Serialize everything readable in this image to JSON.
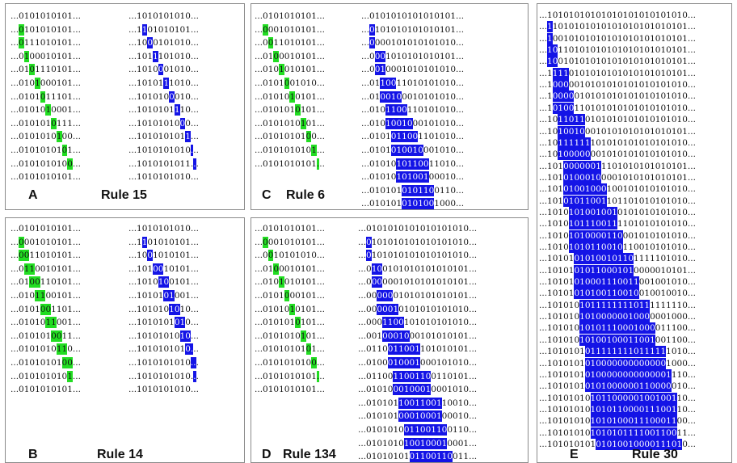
{
  "panels": [
    {
      "id": "A",
      "label_letter": "A",
      "label_rule": "Rule 15",
      "left_rows": [
        {
          "t": "...0101010101..."
        },
        {
          "t": "...0101010101...",
          "g": [
            3
          ]
        },
        {
          "t": "...0111010101...",
          "g": [
            3
          ]
        },
        {
          "t": "...0100010101...",
          "g": [
            4
          ]
        },
        {
          "t": "...0101110101...",
          "g": [
            5
          ]
        },
        {
          "t": "...0101000101...",
          "g": [
            6
          ]
        },
        {
          "t": "...0101011101...",
          "g": [
            7
          ]
        },
        {
          "t": "...0101010001...",
          "g": [
            8
          ]
        },
        {
          "t": "...0101010111...",
          "g": [
            9
          ]
        },
        {
          "t": "...0101010100...",
          "g": [
            10
          ]
        },
        {
          "t": "...0101010101...",
          "g": [
            11
          ]
        },
        {
          "t": "...0101010100...",
          "g": [
            12
          ]
        },
        {
          "t": "...0101010101..."
        }
      ],
      "right_rows": [
        {
          "t": "...1010101010..."
        },
        {
          "t": "...1101010101...",
          "b": [
            4
          ]
        },
        {
          "t": "...1000101010...",
          "b": [
            5
          ]
        },
        {
          "t": "...1011101010...",
          "b": [
            6
          ]
        },
        {
          "t": "...1010001010...",
          "b": [
            7
          ]
        },
        {
          "t": "...1010111010...",
          "b": [
            8
          ]
        },
        {
          "t": "...1010100010...",
          "b": [
            9
          ]
        },
        {
          "t": "...1010101110...",
          "b": [
            10
          ]
        },
        {
          "t": "...1010101000...",
          "b": [
            11
          ]
        },
        {
          "t": "...1010101011...",
          "b": [
            12
          ]
        },
        {
          "t": "...1010101010...",
          "b": [
            13
          ]
        },
        {
          "t": "...1010101011...",
          "b": [
            14
          ]
        },
        {
          "t": "...1010101010..."
        }
      ]
    },
    {
      "id": "B",
      "label_letter": "B",
      "label_rule": "Rule 14",
      "left_rows": [
        {
          "t": "...0101010101..."
        },
        {
          "t": "...0001010101...",
          "g": [
            3
          ]
        },
        {
          "t": "...0011010101...",
          "g": [
            3,
            4
          ]
        },
        {
          "t": "...0110010101...",
          "g": [
            4,
            5
          ]
        },
        {
          "t": "...0100110101...",
          "g": [
            5,
            6
          ]
        },
        {
          "t": "...0101100101...",
          "g": [
            6,
            7
          ]
        },
        {
          "t": "...0101001101...",
          "g": [
            7,
            8
          ]
        },
        {
          "t": "...0101011001...",
          "g": [
            8,
            9
          ]
        },
        {
          "t": "...0101010011...",
          "g": [
            9,
            10
          ]
        },
        {
          "t": "...0101010110...",
          "g": [
            10,
            11
          ]
        },
        {
          "t": "...0101010100...",
          "g": [
            11,
            12
          ]
        },
        {
          "t": "...0101010101...",
          "g": [
            12
          ]
        },
        {
          "t": "...0101010101..."
        }
      ],
      "right_rows": [
        {
          "t": "...1010101010..."
        },
        {
          "t": "...1101010101...",
          "b": [
            4
          ]
        },
        {
          "t": "...1001010101...",
          "b": [
            5
          ]
        },
        {
          "t": "...1010010101...",
          "b": [
            6,
            7
          ]
        },
        {
          "t": "...1010100101...",
          "b": [
            7,
            8
          ]
        },
        {
          "t": "...1010101001...",
          "b": [
            8,
            9
          ]
        },
        {
          "t": "...1010101010...",
          "b": [
            9,
            10
          ]
        },
        {
          "t": "...1010101010...",
          "b": [
            10,
            11
          ]
        },
        {
          "t": "...1010101010...",
          "b": [
            11,
            12
          ]
        },
        {
          "t": "...1010101010...",
          "b": [
            12,
            13
          ]
        },
        {
          "t": "...1010101010...",
          "b": [
            13,
            14
          ]
        },
        {
          "t": "...1010101010...",
          "b": [
            14
          ]
        },
        {
          "t": "...1010101010..."
        }
      ]
    }
  ],
  "panel_c": {
    "label_letter": "C",
    "label_rule": "Rule 6",
    "left_rows": [
      "...0101010101...",
      "...0001010101...",
      "...0011010101...",
      "...0100010101...",
      "...0101010101...",
      "...0101001010...",
      "...0101010101...",
      "...0101010101...",
      "...0101010101...",
      "...0101010100...",
      "...0101010101...",
      "...0101010101..."
    ],
    "right_rows": [
      "...0101010101010101...",
      "...0101010101010101...",
      "...0000101010101010...",
      "...0001010101010101...",
      "...0010001010101010...",
      "...0110011010101010...",
      "...0100100010101010...",
      "...0101100110101010...",
      "...0101001000101010...",
      "...0101011001101010...",
      "...0101010010001010...",
      "...0101010110011010...",
      "...0101010100100010...",
      "...0101010101100110...",
      "...0101010101001000..."
    ]
  },
  "panel_d": {
    "label_letter": "D",
    "label_rule": "Rule 134",
    "left_rows": [
      "...0101010101...",
      "...0001010101...",
      "...0010101010...",
      "...0100010101...",
      "...0101010101...",
      "...0101000101...",
      "...0101010101...",
      "...0101010101...",
      "...0101010101...",
      "...0101010101...",
      "...0101010100...",
      "...0101010101...",
      "...0101010101..."
    ],
    "right_rows": [
      "...0101010101010101010...",
      "...0101010101010101010...",
      "...0101010101010101010...",
      "...0100101010101010101...",
      "...0000001010101010101...",
      "...0000001010101010101...",
      "...0000010101010101010...",
      "...0001100101010101010...",
      "...0010001000101010101...",
      "...0110011001101010101...",
      "...0100010001000101010...",
      "...0110011001100110101...",
      "...0101000100010001010...",
      "...0101011001100110010...",
      "...0101010001000100010...",
      "...0101010011001100110...",
      "...0101010100100010001...",
      "...0101010101100110011..."
    ]
  },
  "panel_e": {
    "label_letter": "E",
    "label_rule": "Rule 30",
    "rows": [
      "...10101010101010101010101010...",
      "...11010101010101010101010101...",
      "...10010101010101010101010101...",
      "...10110101010101010101010101...",
      "...10010101010101010101010101...",
      "...11110101010101010101010101...",
      "...10000010101010101010101010...",
      "...10000010101010101010101010...",
      "...10100110101010101010101010...",
      "...10110110101010101010101010...",
      "...10100100010101010101010101...",
      "...10111111101010101010101010...",
      "...10100000001010101010101010...",
      "...10100000011101010101010101...",
      "...10101000100001010101010101...",
      "...10101001000100101010101010...",
      "...10101011001101101010101010...",
      "...10101010010010101010101010...",
      "...10101011100111101010101010...",
      "...10101010000110001010101010...",
      "...10101010110010110010101010...",
      "...10101010100101101111101010...",
      "...10101010110001010000010101...",
      "...10101010001110011001001010...",
      "...10101010100110010010010010...",
      "...10101010111111110111111110...",
      "...10101010100000010000001000...",
      "...10101010101110001000011100...",
      "...10101010100100011001001100...",
      "...10101010111111110111111010...",
      "...10101010100000000000001000...",
      "...10101010100000000000001110...",
      "...10101010101000000110000010...",
      "...10101010101100000100100110...",
      "...10101010101011000011100110...",
      "...10101010101010001110001100...",
      "...10101010101010111100110011...",
      "...10101010101010010000111010..."
    ]
  },
  "colors": {
    "green": "#22dd22",
    "blue": "#1414e6",
    "border": "#8a8a8a"
  }
}
